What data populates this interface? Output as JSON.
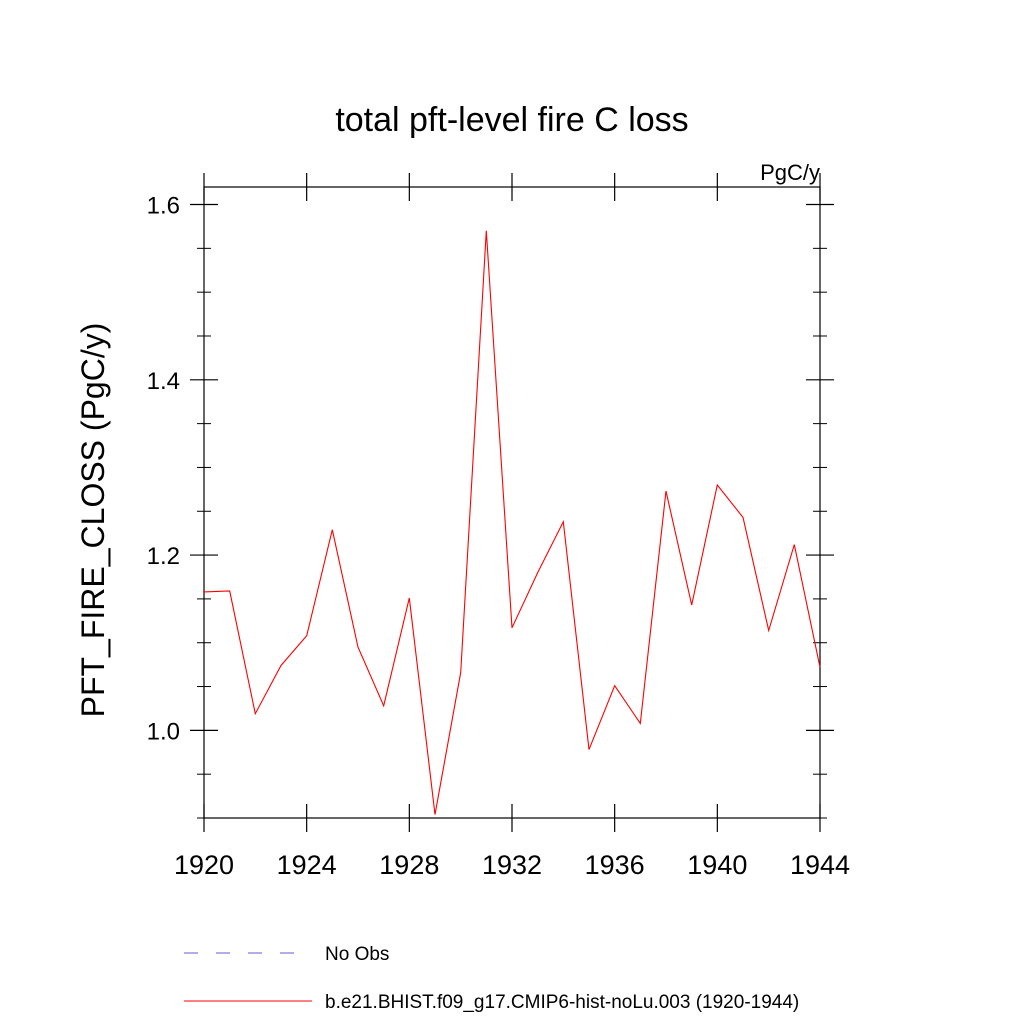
{
  "chart_data": {
    "type": "line",
    "title": "total pft-level fire C loss",
    "units_label": "PgC/y",
    "xlabel": "",
    "ylabel": "PFT_FIRE_CLOSS  (PgC/y)",
    "xlim": [
      1920,
      1944
    ],
    "ylim": [
      0.9,
      1.62
    ],
    "x_ticks": [
      1920,
      1924,
      1928,
      1932,
      1936,
      1940,
      1944
    ],
    "x_tick_labels": [
      "1920",
      "1924",
      "1928",
      "1932",
      "1936",
      "1940",
      "1944"
    ],
    "y_ticks": [
      1.0,
      1.2,
      1.4,
      1.6
    ],
    "y_tick_labels": [
      "1.0",
      "1.2",
      "1.4",
      "1.6"
    ],
    "y_minor_step": 0.05,
    "series": [
      {
        "name": "b.e21.BHIST.f09_g17.CMIP6-hist-noLu.003 (1920-1944)",
        "color": "#ff0000",
        "style": "solid",
        "x": [
          1920,
          1921,
          1922,
          1923,
          1924,
          1925,
          1926,
          1927,
          1928,
          1929,
          1930,
          1931,
          1932,
          1933,
          1934,
          1935,
          1936,
          1937,
          1938,
          1939,
          1940,
          1941,
          1942,
          1943,
          1944
        ],
        "values": [
          1.158,
          1.159,
          1.019,
          1.074,
          1.108,
          1.229,
          1.095,
          1.028,
          1.151,
          0.904,
          1.066,
          1.57,
          1.117,
          1.18,
          1.238,
          0.978,
          1.051,
          1.008,
          1.273,
          1.143,
          1.28,
          1.243,
          1.114,
          1.212,
          1.072
        ]
      }
    ],
    "legend": [
      {
        "label": "No Obs",
        "color": "#6a5acd",
        "style": "dashed"
      },
      {
        "label": "b.e21.BHIST.f09_g17.CMIP6-hist-noLu.003 (1920-1944)",
        "color": "#ff0000",
        "style": "solid"
      }
    ],
    "legend_position": "bottom",
    "grid": false
  }
}
